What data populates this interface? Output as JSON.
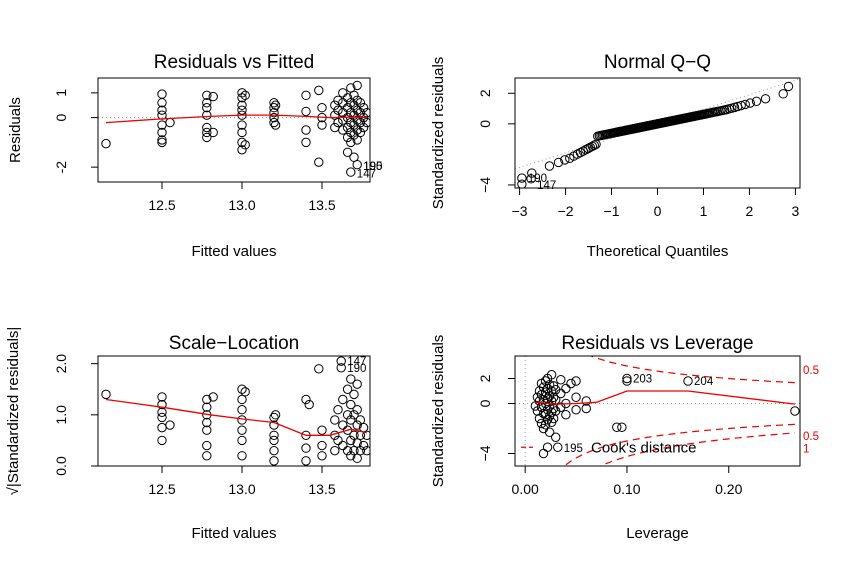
{
  "chart_data": [
    {
      "type": "scatter",
      "title": "Residuals vs Fitted",
      "xlabel": "Fitted values",
      "ylabel": "Residuals",
      "xlim": [
        12.1,
        13.8
      ],
      "ylim": [
        -2.6,
        1.6
      ],
      "xticks": [
        12.5,
        13.0,
        13.5
      ],
      "xtick_labels": [
        "12.5",
        "13.0",
        "13.5"
      ],
      "yticks": [
        -2,
        0,
        1
      ],
      "ytick_labels": [
        "-2",
        "0",
        "1"
      ],
      "reference_line": 0,
      "annotations": [
        {
          "label": "195",
          "x": 13.72,
          "y": -1.95
        },
        {
          "label": "190",
          "x": 13.72,
          "y": -1.95
        },
        {
          "label": "147",
          "x": 13.68,
          "y": -2.25
        }
      ],
      "smooth": {
        "x": [
          12.15,
          12.5,
          12.8,
          13.0,
          13.2,
          13.4,
          13.55,
          13.7,
          13.78
        ],
        "y": [
          -0.2,
          -0.05,
          0.05,
          0.1,
          0.1,
          0.05,
          0.0,
          0.02,
          0.0
        ]
      },
      "points": [
        [
          12.15,
          -1.05
        ],
        [
          12.5,
          0.95
        ],
        [
          12.5,
          0.6
        ],
        [
          12.5,
          0.3
        ],
        [
          12.5,
          0.1
        ],
        [
          12.5,
          -0.3
        ],
        [
          12.5,
          -0.6
        ],
        [
          12.5,
          -0.9
        ],
        [
          12.5,
          -1.0
        ],
        [
          12.55,
          -0.2
        ],
        [
          12.78,
          0.9
        ],
        [
          12.78,
          0.6
        ],
        [
          12.78,
          0.4
        ],
        [
          12.78,
          0.1
        ],
        [
          12.78,
          -0.4
        ],
        [
          12.78,
          -0.6
        ],
        [
          12.78,
          -0.8
        ],
        [
          12.82,
          0.85
        ],
        [
          12.82,
          -0.6
        ],
        [
          13.0,
          1.0
        ],
        [
          13.0,
          0.8
        ],
        [
          13.0,
          0.5
        ],
        [
          13.0,
          0.3
        ],
        [
          13.0,
          0.1
        ],
        [
          13.0,
          -0.3
        ],
        [
          13.0,
          -0.6
        ],
        [
          13.0,
          -1.0
        ],
        [
          13.0,
          -1.3
        ],
        [
          13.02,
          0.9
        ],
        [
          13.02,
          -1.1
        ],
        [
          13.2,
          0.6
        ],
        [
          13.2,
          0.4
        ],
        [
          13.2,
          0.2
        ],
        [
          13.2,
          0.0
        ],
        [
          13.2,
          -0.2
        ],
        [
          13.21,
          0.5
        ],
        [
          13.21,
          -0.3
        ],
        [
          13.4,
          0.9
        ],
        [
          13.4,
          0.25
        ],
        [
          13.4,
          -0.5
        ],
        [
          13.4,
          -1.0
        ],
        [
          13.5,
          0.4
        ],
        [
          13.5,
          0.0
        ],
        [
          13.5,
          -0.3
        ],
        [
          13.48,
          1.1
        ],
        [
          13.48,
          -1.8
        ],
        [
          13.58,
          0.5
        ],
        [
          13.58,
          0.1
        ],
        [
          13.58,
          -0.4
        ],
        [
          13.6,
          0.7
        ],
        [
          13.6,
          0.3
        ],
        [
          13.6,
          -0.2
        ],
        [
          13.63,
          1.0
        ],
        [
          13.63,
          0.6
        ],
        [
          13.63,
          0.2
        ],
        [
          13.63,
          -0.1
        ],
        [
          13.63,
          -0.5
        ],
        [
          13.66,
          0.8
        ],
        [
          13.66,
          0.4
        ],
        [
          13.66,
          0.0
        ],
        [
          13.66,
          -0.4
        ],
        [
          13.66,
          -0.8
        ],
        [
          13.66,
          -1.4
        ],
        [
          13.68,
          1.2
        ],
        [
          13.68,
          0.6
        ],
        [
          13.68,
          0.2
        ],
        [
          13.68,
          -0.2
        ],
        [
          13.68,
          -0.6
        ],
        [
          13.68,
          -1.0
        ],
        [
          13.68,
          -2.2
        ],
        [
          13.7,
          0.9
        ],
        [
          13.7,
          0.5
        ],
        [
          13.7,
          0.1
        ],
        [
          13.7,
          -0.3
        ],
        [
          13.7,
          -0.7
        ],
        [
          13.7,
          -1.6
        ],
        [
          13.72,
          1.3
        ],
        [
          13.72,
          0.7
        ],
        [
          13.72,
          0.3
        ],
        [
          13.72,
          -0.1
        ],
        [
          13.72,
          -0.5
        ],
        [
          13.72,
          -0.9
        ],
        [
          13.72,
          -1.9
        ],
        [
          13.74,
          0.6
        ],
        [
          13.74,
          0.2
        ],
        [
          13.74,
          -0.2
        ],
        [
          13.74,
          -0.6
        ],
        [
          13.76,
          0.4
        ],
        [
          13.76,
          0.0
        ],
        [
          13.76,
          -0.4
        ],
        [
          13.78,
          0.2
        ],
        [
          13.78,
          -0.2
        ]
      ]
    },
    {
      "type": "scatter",
      "title": "Normal Q−Q",
      "xlabel": "Theoretical Quantiles",
      "ylabel": "Standardized residuals",
      "xlim": [
        -3.1,
        3.1
      ],
      "ylim": [
        -4.2,
        3.0
      ],
      "xticks": [
        -3,
        -2,
        -1,
        0,
        1,
        2,
        3
      ],
      "xtick_labels": [
        "−3",
        "−2",
        "−1",
        "0",
        "1",
        "2",
        "3"
      ],
      "yticks": [
        -4,
        0,
        2
      ],
      "ytick_labels": [
        "−4",
        "0",
        "2"
      ],
      "reference_line": {
        "slope": 0.95,
        "intercept": 0.0
      },
      "annotations": [
        {
          "label": "190",
          "x": -2.95,
          "y": -3.55
        },
        {
          "label": "147",
          "x": -2.75,
          "y": -4.0
        }
      ]
    },
    {
      "type": "scatter",
      "title": "Scale−Location",
      "xlabel": "Fitted values",
      "ylabel": "√|Standardized residuals|",
      "xlim": [
        12.1,
        13.8
      ],
      "ylim": [
        0.0,
        2.15
      ],
      "xticks": [
        12.5,
        13.0,
        13.5
      ],
      "xtick_labels": [
        "12.5",
        "13.0",
        "13.5"
      ],
      "yticks": [
        0.0,
        1.0,
        2.0
      ],
      "ytick_labels": [
        "0.0",
        "1.0",
        "2.0"
      ],
      "annotations": [
        {
          "label": "147",
          "x": 13.62,
          "y": 2.05
        },
        {
          "label": "190",
          "x": 13.62,
          "y": 1.92
        }
      ],
      "smooth": {
        "x": [
          12.15,
          12.5,
          12.8,
          13.0,
          13.2,
          13.4,
          13.55,
          13.68,
          13.78
        ],
        "y": [
          1.3,
          1.15,
          1.0,
          0.92,
          0.85,
          0.6,
          0.6,
          0.72,
          0.65
        ]
      },
      "points": [
        [
          12.15,
          1.4
        ],
        [
          12.5,
          1.35
        ],
        [
          12.5,
          1.2
        ],
        [
          12.5,
          1.05
        ],
        [
          12.5,
          0.95
        ],
        [
          12.5,
          0.75
        ],
        [
          12.5,
          0.5
        ],
        [
          12.55,
          0.8
        ],
        [
          12.78,
          1.3
        ],
        [
          12.78,
          1.15
        ],
        [
          12.78,
          1.0
        ],
        [
          12.78,
          0.85
        ],
        [
          12.78,
          0.7
        ],
        [
          12.78,
          0.4
        ],
        [
          12.78,
          0.2
        ],
        [
          12.82,
          1.35
        ],
        [
          13.0,
          1.5
        ],
        [
          13.0,
          1.3
        ],
        [
          13.0,
          1.1
        ],
        [
          13.0,
          0.9
        ],
        [
          13.0,
          0.7
        ],
        [
          13.0,
          0.5
        ],
        [
          13.0,
          0.2
        ],
        [
          13.02,
          1.45
        ],
        [
          13.2,
          0.95
        ],
        [
          13.2,
          0.8
        ],
        [
          13.2,
          0.6
        ],
        [
          13.2,
          0.5
        ],
        [
          13.2,
          0.3
        ],
        [
          13.2,
          0.1
        ],
        [
          13.21,
          1.0
        ],
        [
          13.4,
          1.3
        ],
        [
          13.4,
          0.6
        ],
        [
          13.4,
          0.35
        ],
        [
          13.4,
          0.1
        ],
        [
          13.42,
          1.2
        ],
        [
          13.48,
          1.9
        ],
        [
          13.5,
          0.7
        ],
        [
          13.5,
          0.4
        ],
        [
          13.5,
          0.2
        ],
        [
          13.58,
          0.9
        ],
        [
          13.58,
          0.6
        ],
        [
          13.58,
          0.3
        ],
        [
          13.6,
          1.1
        ],
        [
          13.6,
          0.5
        ],
        [
          13.62,
          2.05
        ],
        [
          13.62,
          1.92
        ],
        [
          13.63,
          1.3
        ],
        [
          13.63,
          0.8
        ],
        [
          13.63,
          0.4
        ],
        [
          13.66,
          1.5
        ],
        [
          13.66,
          1.0
        ],
        [
          13.66,
          0.7
        ],
        [
          13.66,
          0.3
        ],
        [
          13.68,
          1.7
        ],
        [
          13.68,
          1.2
        ],
        [
          13.68,
          0.9
        ],
        [
          13.68,
          0.5
        ],
        [
          13.68,
          0.2
        ],
        [
          13.7,
          1.4
        ],
        [
          13.7,
          1.0
        ],
        [
          13.7,
          0.6
        ],
        [
          13.7,
          0.3
        ],
        [
          13.72,
          1.6
        ],
        [
          13.72,
          1.1
        ],
        [
          13.72,
          0.8
        ],
        [
          13.72,
          0.45
        ],
        [
          13.72,
          0.15
        ],
        [
          13.74,
          0.9
        ],
        [
          13.74,
          0.6
        ],
        [
          13.74,
          0.3
        ],
        [
          13.76,
          0.75
        ],
        [
          13.76,
          0.4
        ],
        [
          13.78,
          0.6
        ],
        [
          13.78,
          0.3
        ]
      ]
    },
    {
      "type": "scatter",
      "title": "Residuals vs Leverage",
      "xlabel": "Leverage",
      "ylabel": "Standardized residuals",
      "xlim": [
        -0.01,
        0.27
      ],
      "ylim": [
        -5.0,
        3.8
      ],
      "xticks": [
        0.0,
        0.1,
        0.2
      ],
      "xtick_labels": [
        "0.00",
        "0.10",
        "0.20"
      ],
      "yticks": [
        -4,
        0,
        2
      ],
      "ytick_labels": [
        "−4",
        "0",
        "2"
      ],
      "annotations": [
        {
          "label": "203",
          "x": 0.1,
          "y": 2.0
        },
        {
          "label": "204",
          "x": 0.16,
          "y": 1.8
        },
        {
          "label": "195",
          "x": 0.032,
          "y": -3.55
        }
      ],
      "legend_text": "Cook's distance",
      "cook_contour_labels": [
        {
          "label": "0.5",
          "y": 2.7
        },
        {
          "label": "0.5",
          "y": -2.6
        },
        {
          "label": "1",
          "y": -3.6
        }
      ],
      "smooth": {
        "x": [
          0.01,
          0.03,
          0.05,
          0.07,
          0.1,
          0.16,
          0.265
        ],
        "y": [
          0.1,
          -0.05,
          0.0,
          0.1,
          1.0,
          1.0,
          -0.05
        ]
      },
      "points": [
        [
          0.01,
          -0.2
        ],
        [
          0.012,
          0.5
        ],
        [
          0.012,
          -0.6
        ],
        [
          0.014,
          1.0
        ],
        [
          0.014,
          0.2
        ],
        [
          0.014,
          -1.2
        ],
        [
          0.016,
          1.6
        ],
        [
          0.016,
          0.7
        ],
        [
          0.016,
          -0.3
        ],
        [
          0.016,
          -1.6
        ],
        [
          0.018,
          1.3
        ],
        [
          0.018,
          0.3
        ],
        [
          0.018,
          -0.8
        ],
        [
          0.018,
          -2.0
        ],
        [
          0.018,
          -4.0
        ],
        [
          0.02,
          1.8
        ],
        [
          0.02,
          0.9
        ],
        [
          0.02,
          0.0
        ],
        [
          0.02,
          -0.9
        ],
        [
          0.02,
          -1.7
        ],
        [
          0.022,
          2.0
        ],
        [
          0.022,
          1.2
        ],
        [
          0.022,
          0.4
        ],
        [
          0.022,
          -0.5
        ],
        [
          0.022,
          -1.3
        ],
        [
          0.022,
          -3.5
        ],
        [
          0.024,
          1.5
        ],
        [
          0.024,
          0.6
        ],
        [
          0.024,
          -0.2
        ],
        [
          0.024,
          -1.0
        ],
        [
          0.024,
          -2.3
        ],
        [
          0.026,
          2.3
        ],
        [
          0.026,
          1.0
        ],
        [
          0.026,
          0.2
        ],
        [
          0.026,
          -0.7
        ],
        [
          0.026,
          -1.5
        ],
        [
          0.028,
          1.4
        ],
        [
          0.028,
          0.5
        ],
        [
          0.028,
          -0.4
        ],
        [
          0.028,
          -1.2
        ],
        [
          0.03,
          1.1
        ],
        [
          0.03,
          0.3
        ],
        [
          0.03,
          -0.6
        ],
        [
          0.03,
          -2.7
        ],
        [
          0.032,
          -3.5
        ],
        [
          0.035,
          1.9
        ],
        [
          0.035,
          0.8
        ],
        [
          0.035,
          -0.3
        ],
        [
          0.04,
          1.2
        ],
        [
          0.04,
          0.0
        ],
        [
          0.04,
          -0.9
        ],
        [
          0.045,
          1.6
        ],
        [
          0.05,
          1.8
        ],
        [
          0.05,
          0.5
        ],
        [
          0.05,
          -0.5
        ],
        [
          0.06,
          0.2
        ],
        [
          0.06,
          -0.4
        ],
        [
          0.09,
          -1.9
        ],
        [
          0.095,
          -1.9
        ],
        [
          0.1,
          2.0
        ],
        [
          0.1,
          1.8
        ],
        [
          0.16,
          1.8
        ],
        [
          0.265,
          -0.6
        ]
      ]
    }
  ]
}
